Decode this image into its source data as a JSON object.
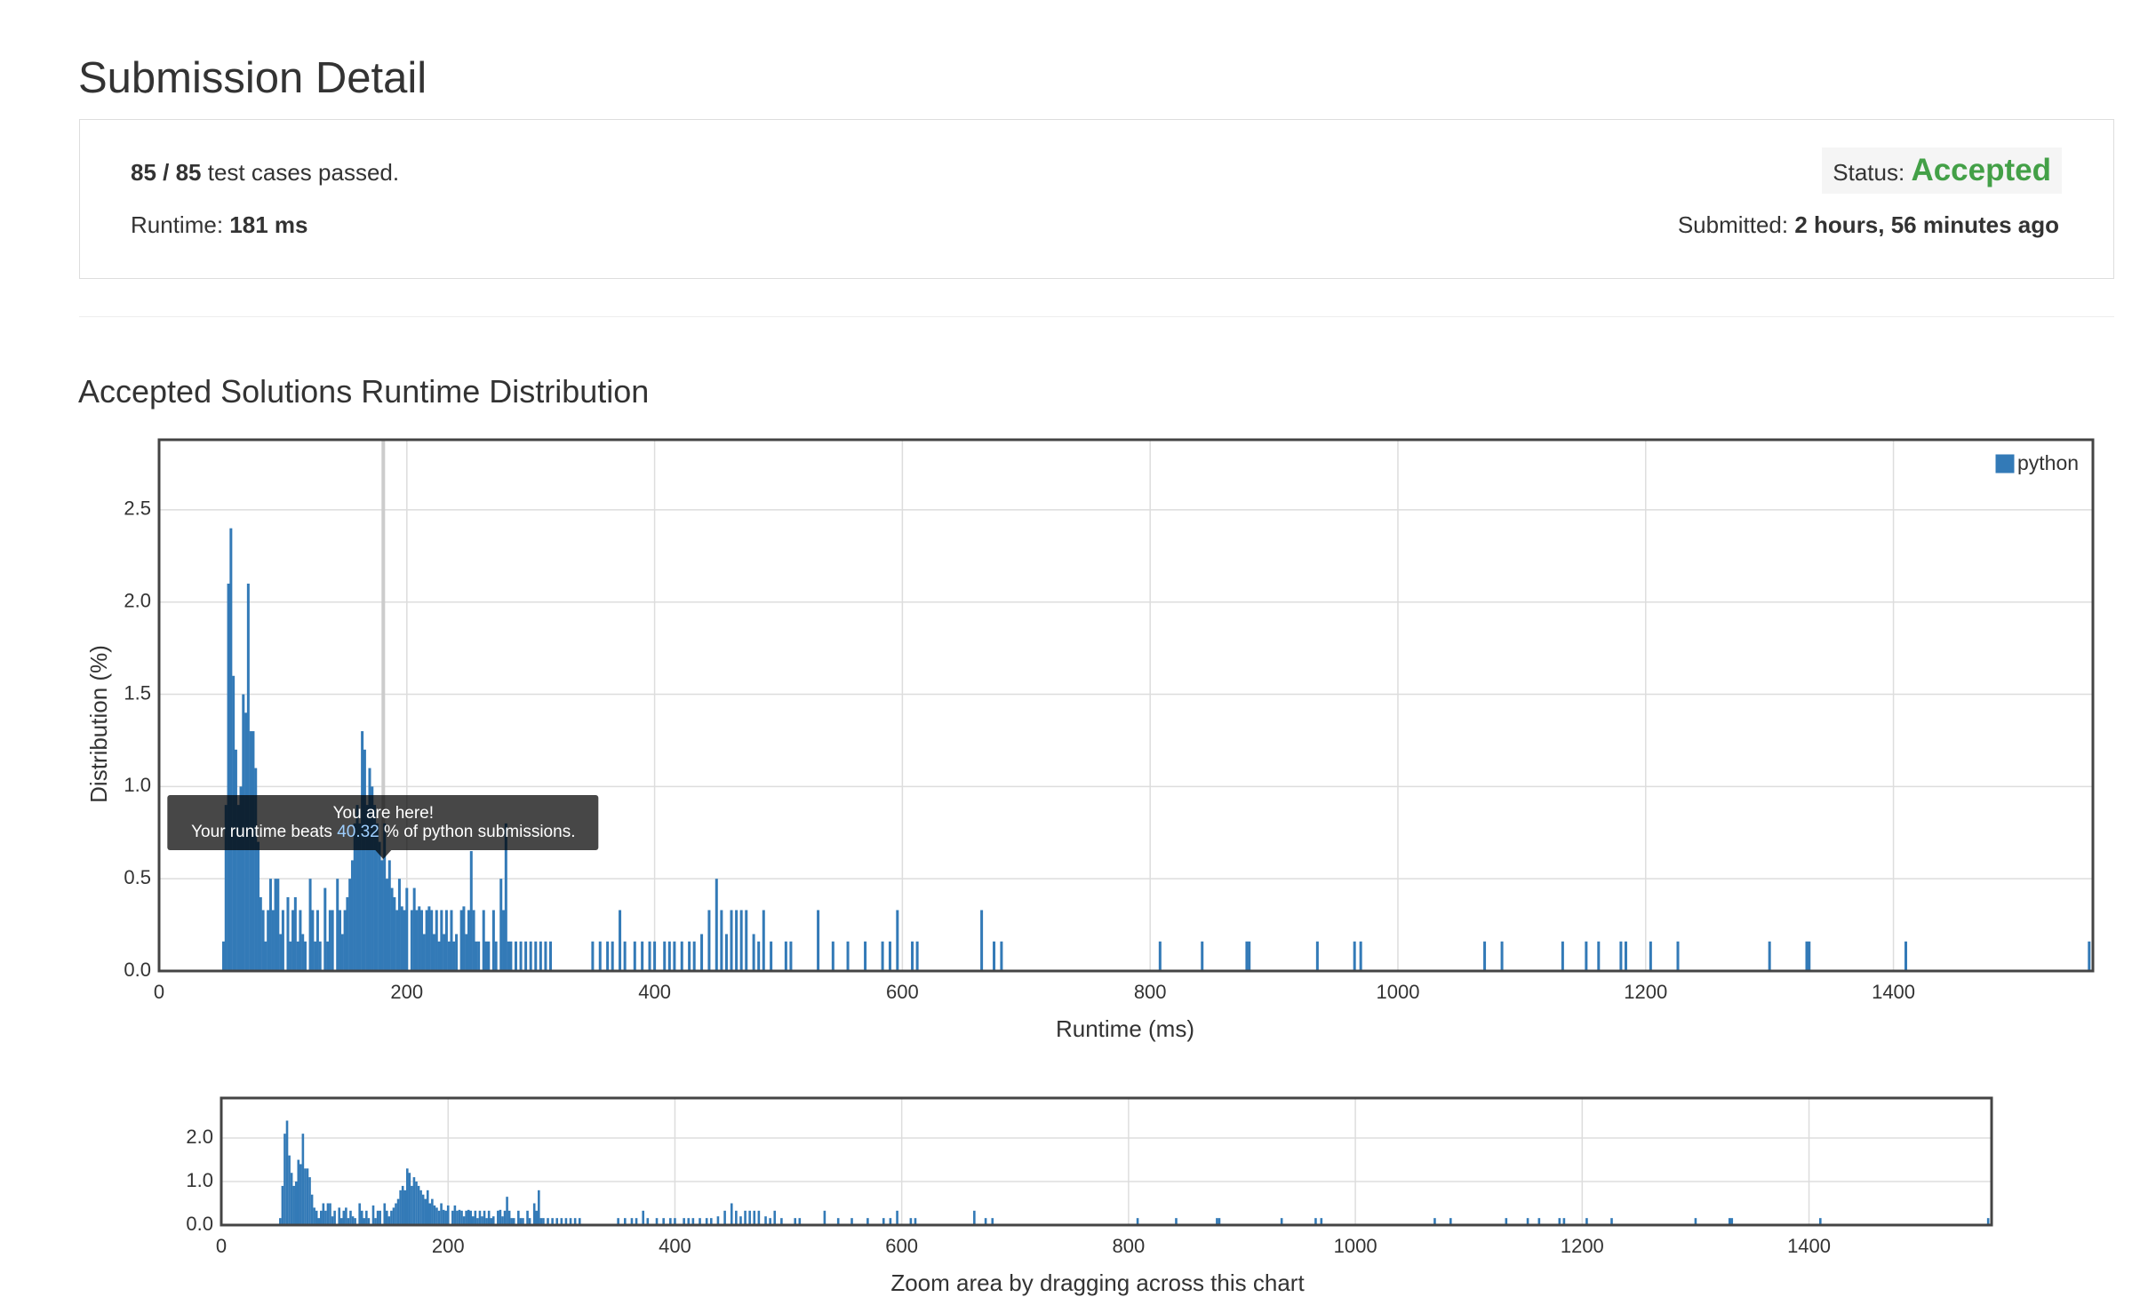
{
  "page_title": "Submission Detail",
  "submission": {
    "passed": "85 / 85",
    "passed_text": "test cases passed.",
    "runtime_label": "Runtime:",
    "runtime": "181 ms",
    "status_label": "Status:",
    "status": "Accepted",
    "submitted_label": "Submitted:",
    "submitted": "2 hours, 56 minutes ago"
  },
  "chart_data": {
    "type": "bar",
    "title": "Accepted Solutions Runtime Distribution",
    "x_label": "Runtime (ms)",
    "y_label": "Distribution (%)",
    "x": [
      52,
      54,
      56,
      58,
      60,
      62,
      64,
      66,
      68,
      70,
      72,
      74,
      76,
      78,
      80,
      82,
      84,
      86,
      88,
      90,
      92,
      94,
      96,
      98,
      100,
      104,
      106,
      108,
      110,
      112,
      114,
      116,
      118,
      122,
      124,
      126,
      128,
      130,
      134,
      136,
      138,
      140,
      144,
      146,
      148,
      150,
      152,
      154,
      156,
      158,
      160,
      162,
      164,
      166,
      168,
      170,
      172,
      174,
      176,
      178,
      180,
      182,
      184,
      186,
      188,
      190,
      192,
      194,
      196,
      198,
      200,
      204,
      206,
      208,
      210,
      212,
      214,
      216,
      218,
      220,
      222,
      224,
      226,
      228,
      230,
      232,
      234,
      236,
      238,
      240,
      244,
      246,
      248,
      250,
      252,
      254,
      256,
      258,
      262,
      264,
      266,
      270,
      272,
      276,
      278,
      280,
      282,
      284,
      288,
      292,
      296,
      300,
      304,
      308,
      312,
      316,
      350,
      356,
      362,
      366,
      372,
      376,
      384,
      390,
      396,
      400,
      408,
      412,
      416,
      422,
      428,
      432,
      438,
      444,
      450,
      454,
      458,
      462,
      466,
      470,
      474,
      480,
      484,
      488,
      494,
      506,
      510,
      532,
      544,
      556,
      570,
      584,
      590,
      596,
      608,
      612,
      664,
      674,
      680,
      808,
      842,
      878,
      880,
      935,
      965,
      970,
      1070,
      1084,
      1133,
      1152,
      1162,
      1180,
      1184,
      1204,
      1226,
      1300,
      1330,
      1332,
      1410,
      1558
    ],
    "series": [
      {
        "name": "python",
        "color": "#337ab7",
        "values": [
          0.16,
          0.9,
          2.1,
          2.4,
          1.6,
          1.2,
          0.9,
          1.0,
          1.5,
          1.4,
          2.1,
          1.3,
          1.3,
          1.1,
          0.7,
          0.4,
          0.33,
          0.16,
          0.33,
          0.5,
          0.33,
          0.5,
          0.5,
          0.2,
          0.33,
          0.4,
          0.16,
          0.33,
          0.4,
          0.16,
          0.33,
          0.2,
          0.16,
          0.5,
          0.33,
          0.16,
          0.33,
          0.16,
          0.45,
          0.16,
          0.33,
          0.33,
          0.5,
          0.33,
          0.2,
          0.33,
          0.4,
          0.5,
          0.6,
          0.8,
          0.9,
          0.8,
          1.3,
          1.2,
          0.9,
          1.1,
          1.0,
          0.9,
          0.8,
          0.7,
          0.6,
          0.8,
          0.5,
          0.6,
          0.45,
          0.4,
          0.33,
          0.5,
          0.35,
          0.33,
          0.45,
          0.33,
          0.45,
          0.33,
          0.35,
          0.33,
          0.2,
          0.33,
          0.35,
          0.33,
          0.2,
          0.33,
          0.16,
          0.33,
          0.2,
          0.33,
          0.16,
          0.33,
          0.16,
          0.2,
          0.33,
          0.35,
          0.2,
          0.33,
          0.65,
          0.33,
          0.16,
          0.16,
          0.33,
          0.16,
          0.16,
          0.33,
          0.16,
          0.5,
          0.33,
          0.8,
          0.16,
          0.16,
          0.16,
          0.16,
          0.16,
          0.16,
          0.16,
          0.16,
          0.16,
          0.16,
          0.16,
          0.16,
          0.16,
          0.16,
          0.33,
          0.16,
          0.16,
          0.16,
          0.16,
          0.16,
          0.16,
          0.16,
          0.16,
          0.16,
          0.16,
          0.16,
          0.2,
          0.33,
          0.5,
          0.33,
          0.2,
          0.33,
          0.33,
          0.33,
          0.33,
          0.2,
          0.16,
          0.33,
          0.16,
          0.16,
          0.16,
          0.33,
          0.16,
          0.16,
          0.16,
          0.16,
          0.16,
          0.33,
          0.16,
          0.16,
          0.33,
          0.16,
          0.16,
          0.16,
          0.16,
          0.16,
          0.16,
          0.16,
          0.16,
          0.16,
          0.16,
          0.16,
          0.16,
          0.16,
          0.16,
          0.16,
          0.16,
          0.16,
          0.16,
          0.16,
          0.16,
          0.16,
          0.16,
          0.16
        ]
      }
    ],
    "xlim": [
      0,
      1561
    ],
    "ylim": [
      0,
      2.88
    ],
    "xticks": [
      0,
      200,
      400,
      600,
      800,
      1000,
      1200,
      1400
    ],
    "yticks": [
      {
        "value": 0,
        "label": "0.0"
      },
      {
        "value": 0.5,
        "label": "0.5"
      },
      {
        "value": 1,
        "label": "1.0"
      },
      {
        "value": 1.5,
        "label": "1.5"
      },
      {
        "value": 2,
        "label": "2.0"
      },
      {
        "value": 2.5,
        "label": "2.5"
      }
    ],
    "grid": true,
    "legend": "top-right",
    "annotation": {
      "x": 181,
      "title": "You are here!",
      "prefix": "Your runtime beats",
      "percent": 40.32,
      "suffix": "% of python submissions."
    },
    "navigator": {
      "ylim": [
        0,
        2.92
      ],
      "yticks": [
        {
          "value": 0,
          "label": "0.0"
        },
        {
          "value": 1,
          "label": "1.0"
        },
        {
          "value": 2,
          "label": "2.0"
        }
      ],
      "caption": "Zoom area by dragging across this chart"
    }
  }
}
